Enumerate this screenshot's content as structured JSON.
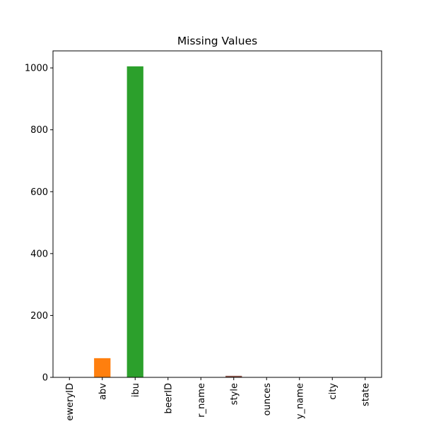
{
  "chart_data": {
    "type": "bar",
    "title": "Missing Values",
    "categories": [
      "eweryID",
      "abv",
      "ibu",
      "beerID",
      "r_name",
      "style",
      "ounces",
      "y_name",
      "city",
      "state"
    ],
    "values": [
      0,
      62,
      1005,
      0,
      0,
      5,
      0,
      0,
      0,
      0
    ],
    "colors": [
      "#1f77b4",
      "#ff7f0e",
      "#2ca02c",
      "#d62728",
      "#9467bd",
      "#8c564b",
      "#e377c2",
      "#7f7f7f",
      "#bcbd22",
      "#17becf"
    ],
    "ylim": [
      0,
      1055
    ],
    "yticks": [
      0,
      200,
      400,
      600,
      800,
      1000
    ],
    "grid": false
  }
}
